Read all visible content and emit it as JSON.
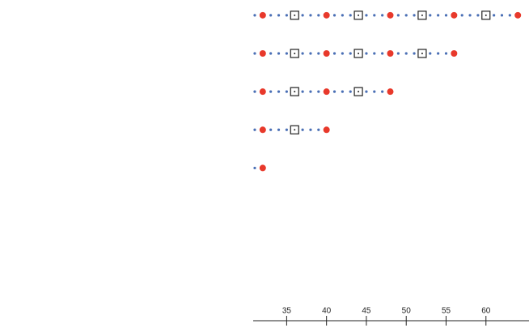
{
  "chart_data": {
    "type": "scatter",
    "xlim": [
      30.8,
      65.4
    ],
    "ylim": [
      -3,
      5.4
    ],
    "xticks": [
      35,
      40,
      45,
      50,
      55,
      60
    ],
    "series": [
      {
        "color": "#4a6fb5",
        "marker": "dot",
        "x": [
          31,
          33,
          34,
          35,
          37,
          38,
          39,
          41,
          42,
          43,
          45,
          46,
          47,
          49,
          50,
          51,
          53,
          54,
          55,
          57,
          58,
          59,
          61,
          62,
          63,
          31,
          33,
          34,
          35,
          37,
          38,
          39,
          41,
          42,
          43,
          45,
          46,
          47,
          49,
          50,
          51,
          53,
          54,
          55,
          31,
          33,
          34,
          35,
          37,
          38,
          39,
          41,
          42,
          43,
          45,
          46,
          47,
          31,
          33,
          34,
          35,
          37,
          38,
          39,
          31
        ],
        "y": [
          5,
          5,
          5,
          5,
          5,
          5,
          5,
          5,
          5,
          5,
          5,
          5,
          5,
          5,
          5,
          5,
          5,
          5,
          5,
          5,
          5,
          5,
          5,
          5,
          5,
          4,
          4,
          4,
          4,
          4,
          4,
          4,
          4,
          4,
          4,
          4,
          4,
          4,
          4,
          4,
          4,
          4,
          4,
          4,
          3,
          3,
          3,
          3,
          3,
          3,
          3,
          3,
          3,
          3,
          3,
          3,
          3,
          2,
          2,
          2,
          2,
          2,
          2,
          2,
          1
        ]
      },
      {
        "color": "#e8392b",
        "marker": "circle",
        "x": [
          32,
          40,
          48,
          56,
          64,
          32,
          40,
          48,
          56,
          32,
          40,
          48,
          32,
          40,
          32
        ],
        "y": [
          5,
          5,
          5,
          5,
          5,
          4,
          4,
          4,
          4,
          3,
          3,
          3,
          2,
          2,
          1
        ]
      },
      {
        "color": "#222222",
        "marker": "square",
        "x": [
          36,
          44,
          52,
          60,
          36,
          44,
          52,
          36,
          44,
          36
        ],
        "y": [
          5,
          5,
          5,
          5,
          4,
          4,
          4,
          3,
          3,
          2
        ]
      }
    ]
  }
}
